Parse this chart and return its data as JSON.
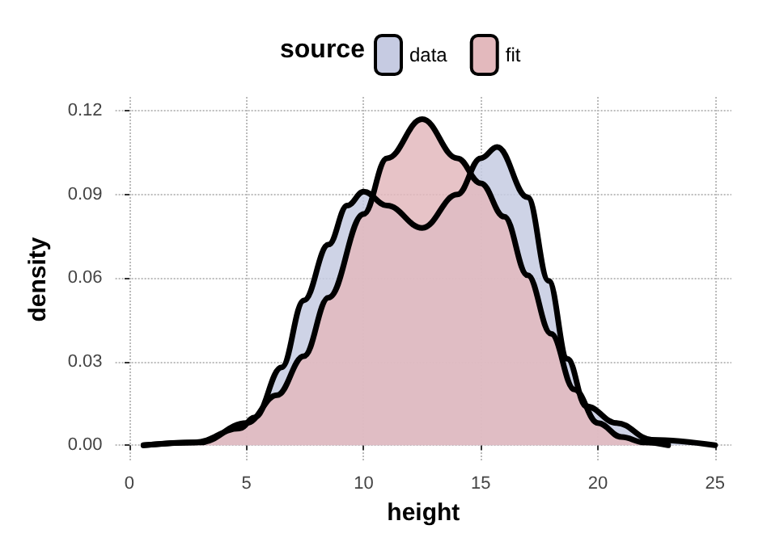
{
  "chart_data": {
    "type": "area",
    "xlabel": "height",
    "ylabel": "density",
    "legend_title": "source",
    "legend": "top",
    "grid": true,
    "marker": "none",
    "line_style": "solid",
    "xlim": [
      -0.6,
      25.7
    ],
    "ylim": [
      -0.006,
      0.125
    ],
    "xticks": [
      0,
      5,
      10,
      15,
      20,
      25
    ],
    "yticks": [
      {
        "value": 0,
        "label": "0.00"
      },
      {
        "value": 0.03,
        "label": "0.03"
      },
      {
        "value": 0.06,
        "label": "0.06"
      },
      {
        "value": 0.09,
        "label": "0.09"
      },
      {
        "value": 0.12,
        "label": "0.12"
      }
    ],
    "series": [
      {
        "name": "data",
        "color": "#c6cbe2",
        "x": [
          0.6,
          2.8,
          4.7,
          5.35,
          6.5,
          7.45,
          8.5,
          9.3,
          10,
          11,
          12.5,
          14,
          15,
          15.7,
          17,
          17.9,
          18.7,
          19.5,
          20.8,
          22.3,
          25
        ],
        "values": [
          0,
          0.001,
          0.006,
          0.01,
          0.028,
          0.052,
          0.072,
          0.086,
          0.091,
          0.086,
          0.078,
          0.09,
          0.103,
          0.107,
          0.089,
          0.059,
          0.031,
          0.014,
          0.008,
          0.002,
          0
        ]
      },
      {
        "name": "fit",
        "color": "#e3b9bd",
        "x": [
          0.6,
          3,
          5,
          6.3,
          7.45,
          8.5,
          10,
          11,
          12.5,
          14,
          15,
          16,
          17,
          18,
          19,
          20,
          21,
          22,
          23
        ],
        "values": [
          0,
          0.001,
          0.008,
          0.018,
          0.032,
          0.053,
          0.083,
          0.103,
          0.117,
          0.103,
          0.094,
          0.082,
          0.061,
          0.04,
          0.02,
          0.008,
          0.003,
          0.001,
          0
        ]
      }
    ]
  }
}
